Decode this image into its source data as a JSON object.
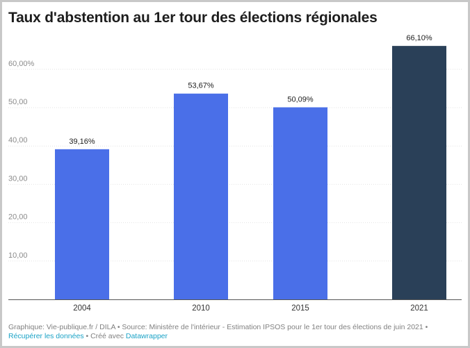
{
  "title": "Taux d'abstention au 1er tour des élections régionales",
  "chart_data": {
    "type": "bar",
    "categories": [
      "2004",
      "2010",
      "2015",
      "2021"
    ],
    "values": [
      39.16,
      53.67,
      50.09,
      66.1
    ],
    "value_labels": [
      "39,16%",
      "53,67%",
      "50,09%",
      "66,10%"
    ],
    "y_ticks": [
      10,
      20,
      30,
      40,
      50,
      60
    ],
    "y_tick_labels": [
      "10,00",
      "20,00",
      "30,00",
      "40,00",
      "50,00",
      "60,00%"
    ],
    "ylim": [
      0,
      70
    ],
    "grid": true,
    "bar_colors": [
      "#4a6fe8",
      "#4a6fe8",
      "#4a6fe8",
      "#2a4058"
    ],
    "xlabel": "",
    "ylabel": ""
  },
  "footer": {
    "text": "Graphique: Vie-publique.fr / DILA • Source: Ministère de l'intérieur - Estimation IPSOS pour le 1er tour des élections de juin 2021 •",
    "download_link": "Récupérer les données",
    "separator": "• Créé avec",
    "datawrapper_link": "Datawrapper"
  }
}
